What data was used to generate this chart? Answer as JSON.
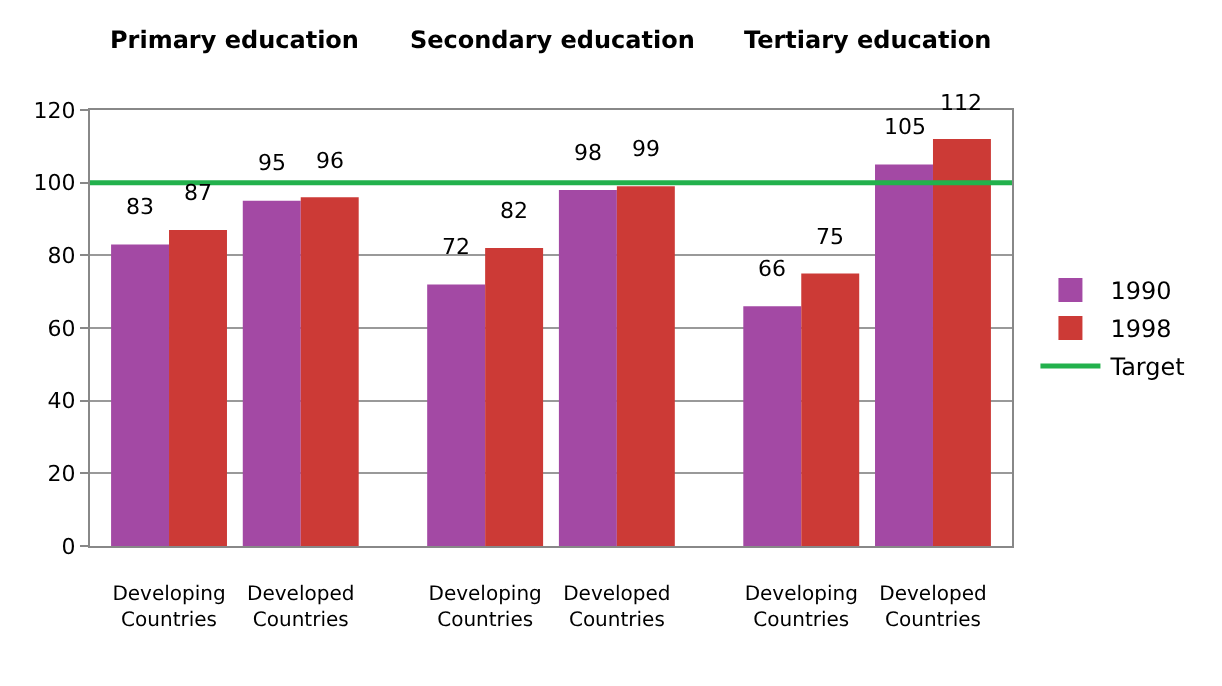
{
  "chart_data": {
    "type": "bar",
    "categories": [
      "Developing Countries",
      "Developed Countries",
      "Developing Countries",
      "Developed Countries",
      "Developing Countries",
      "Developed Countries"
    ],
    "series": [
      {
        "name": "1990",
        "color": "#a349a4",
        "values": [
          83,
          95,
          72,
          98,
          66,
          105
        ]
      },
      {
        "name": "1998",
        "color": "#cc3a36",
        "values": [
          87,
          96,
          82,
          99,
          75,
          112
        ]
      }
    ],
    "ref_lines": [
      {
        "axis": "y",
        "value": 100,
        "label": "Target",
        "color": "#22b14c"
      }
    ],
    "annotations": [
      "Primary education",
      "Secondary education",
      "Tertiary education"
    ],
    "ylim": [
      0,
      120
    ],
    "yticks": [
      0,
      20,
      40,
      60,
      80,
      100,
      120
    ],
    "grid": "y",
    "legend": "right",
    "data_labels": true
  }
}
